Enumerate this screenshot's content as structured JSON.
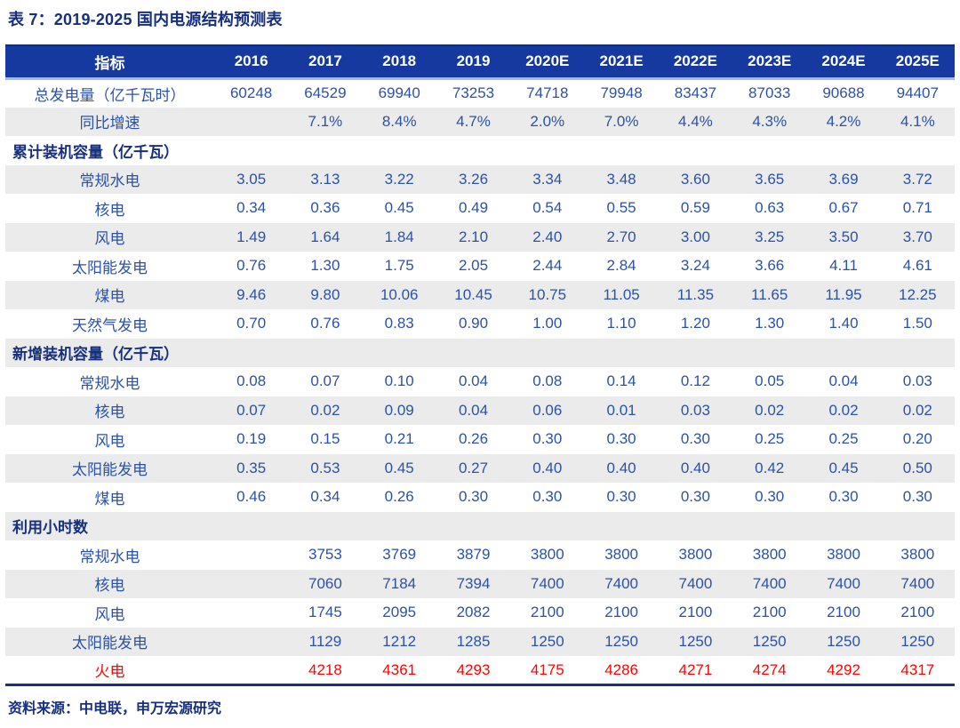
{
  "page": {
    "title": "表 7：2019-2025 国内电源结构预测表",
    "source_note": "资料来源：中电联，申万宏源研究"
  },
  "colors": {
    "header_bg": "#15399E",
    "header_text": "#FFFFFF",
    "header_underline": "#A6B7E2",
    "title_text": "#16307E",
    "cell_text": "#2B52A6",
    "stripe_bg": "#EBEBEB",
    "highlight_text": "#FA0505",
    "table_bottom_border": "#16317E"
  },
  "chart_data": {
    "type": "table",
    "title": "表 7：2019-2025 国内电源结构预测表",
    "columns": [
      "指标",
      "2016",
      "2017",
      "2018",
      "2019",
      "2020E",
      "2021E",
      "2022E",
      "2023E",
      "2024E",
      "2025E"
    ],
    "rows": [
      {
        "type": "data",
        "label": "总发电量（亿千瓦时）",
        "values": [
          "60248",
          "64529",
          "69940",
          "73253",
          "74718",
          "79948",
          "83437",
          "87033",
          "90688",
          "94407"
        ]
      },
      {
        "type": "data",
        "label": "同比增速",
        "values": [
          "",
          "7.1%",
          "8.4%",
          "4.7%",
          "2.0%",
          "7.0%",
          "4.4%",
          "4.3%",
          "4.2%",
          "4.1%"
        ]
      },
      {
        "type": "section",
        "label": "累计装机容量（亿千瓦）",
        "values": []
      },
      {
        "type": "data",
        "label": "常规水电",
        "values": [
          "3.05",
          "3.13",
          "3.22",
          "3.26",
          "3.34",
          "3.48",
          "3.60",
          "3.65",
          "3.69",
          "3.72"
        ]
      },
      {
        "type": "data",
        "label": "核电",
        "values": [
          "0.34",
          "0.36",
          "0.45",
          "0.49",
          "0.54",
          "0.55",
          "0.59",
          "0.63",
          "0.67",
          "0.71"
        ]
      },
      {
        "type": "data",
        "label": "风电",
        "values": [
          "1.49",
          "1.64",
          "1.84",
          "2.10",
          "2.40",
          "2.70",
          "3.00",
          "3.25",
          "3.50",
          "3.70"
        ]
      },
      {
        "type": "data",
        "label": "太阳能发电",
        "values": [
          "0.76",
          "1.30",
          "1.75",
          "2.05",
          "2.44",
          "2.84",
          "3.24",
          "3.66",
          "4.11",
          "4.61"
        ]
      },
      {
        "type": "data",
        "label": "煤电",
        "values": [
          "9.46",
          "9.80",
          "10.06",
          "10.45",
          "10.75",
          "11.05",
          "11.35",
          "11.65",
          "11.95",
          "12.25"
        ]
      },
      {
        "type": "data",
        "label": "天然气发电",
        "values": [
          "0.70",
          "0.76",
          "0.83",
          "0.90",
          "1.00",
          "1.10",
          "1.20",
          "1.30",
          "1.40",
          "1.50"
        ]
      },
      {
        "type": "section",
        "label": "新增装机容量（亿千瓦）",
        "values": []
      },
      {
        "type": "data",
        "label": "常规水电",
        "values": [
          "0.08",
          "0.07",
          "0.10",
          "0.04",
          "0.08",
          "0.14",
          "0.12",
          "0.05",
          "0.04",
          "0.03"
        ]
      },
      {
        "type": "data",
        "label": "核电",
        "values": [
          "0.07",
          "0.02",
          "0.09",
          "0.04",
          "0.06",
          "0.01",
          "0.03",
          "0.02",
          "0.02",
          "0.02"
        ]
      },
      {
        "type": "data",
        "label": "风电",
        "values": [
          "0.19",
          "0.15",
          "0.21",
          "0.26",
          "0.30",
          "0.30",
          "0.30",
          "0.25",
          "0.25",
          "0.20"
        ]
      },
      {
        "type": "data",
        "label": "太阳能发电",
        "values": [
          "0.35",
          "0.53",
          "0.45",
          "0.27",
          "0.40",
          "0.40",
          "0.40",
          "0.42",
          "0.45",
          "0.50"
        ]
      },
      {
        "type": "data",
        "label": "煤电",
        "values": [
          "0.46",
          "0.34",
          "0.26",
          "0.30",
          "0.30",
          "0.30",
          "0.30",
          "0.30",
          "0.30",
          "0.30"
        ]
      },
      {
        "type": "section",
        "label": "利用小时数",
        "values": []
      },
      {
        "type": "data",
        "label": "常规水电",
        "values": [
          "",
          "3753",
          "3769",
          "3879",
          "3800",
          "3800",
          "3800",
          "3800",
          "3800",
          "3800"
        ]
      },
      {
        "type": "data",
        "label": "核电",
        "values": [
          "",
          "7060",
          "7184",
          "7394",
          "7400",
          "7400",
          "7400",
          "7400",
          "7400",
          "7400"
        ]
      },
      {
        "type": "data",
        "label": "风电",
        "values": [
          "",
          "1745",
          "2095",
          "2082",
          "2100",
          "2100",
          "2100",
          "2100",
          "2100",
          "2100"
        ]
      },
      {
        "type": "data",
        "label": "太阳能发电",
        "values": [
          "",
          "1129",
          "1212",
          "1285",
          "1250",
          "1250",
          "1250",
          "1250",
          "1250",
          "1250"
        ]
      },
      {
        "type": "data",
        "label": "火电",
        "highlight": true,
        "values": [
          "",
          "4218",
          "4361",
          "4293",
          "4175",
          "4286",
          "4271",
          "4274",
          "4292",
          "4317"
        ]
      }
    ]
  }
}
